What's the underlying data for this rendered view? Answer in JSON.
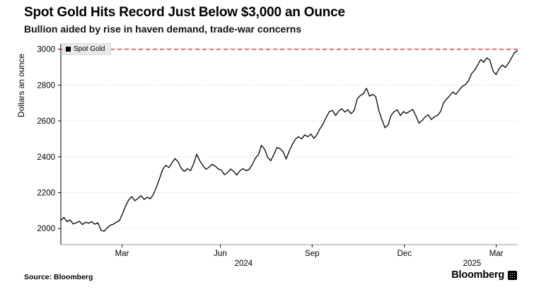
{
  "header": {
    "title": "Spot Gold Hits Record Just Below $3,000 an Ounce",
    "subtitle": "Bullion aided by rise in haven demand, trade-war concerns"
  },
  "footer": {
    "source": "Source: Bloomberg",
    "brand": "Bloomberg"
  },
  "chart_data": {
    "type": "line",
    "title": "Spot Gold Hits Record Just Below $3,000 an Ounce",
    "subtitle": "Bullion aided by rise in haven demand, trade-war concerns",
    "ylabel": "Dollars an ounce",
    "ylim": [
      1910,
      3030
    ],
    "yticks": [
      2000,
      2200,
      2400,
      2600,
      2800,
      3000
    ],
    "xticks": [
      {
        "pos": 0.134,
        "label": "Mar"
      },
      {
        "pos": 0.349,
        "label": "Jun"
      },
      {
        "pos": 0.55,
        "label": "Sep"
      },
      {
        "pos": 0.752,
        "label": "Dec"
      },
      {
        "pos": 0.953,
        "label": "Mar"
      }
    ],
    "year_labels": [
      {
        "pos": 0.4,
        "label": "2024"
      },
      {
        "pos": 0.9,
        "label": "2025"
      }
    ],
    "grid": "horizontal-dotted",
    "legend_position": "top-left-inside",
    "record_line": {
      "value": 3000,
      "color": "#e8344e",
      "style": "dashed"
    },
    "legend": {
      "label": "Spot Gold",
      "swatch_color": "#000000"
    },
    "series": [
      {
        "name": "Spot Gold",
        "color": "#000000",
        "values": [
          2045,
          2062,
          2038,
          2048,
          2025,
          2032,
          2040,
          2022,
          2035,
          2029,
          2038,
          2024,
          2032,
          1992,
          1984,
          2004,
          2018,
          2024,
          2035,
          2044,
          2083,
          2126,
          2160,
          2178,
          2155,
          2168,
          2183,
          2162,
          2174,
          2166,
          2190,
          2232,
          2280,
          2330,
          2352,
          2340,
          2366,
          2390,
          2372,
          2336,
          2318,
          2334,
          2322,
          2360,
          2414,
          2378,
          2352,
          2330,
          2342,
          2358,
          2348,
          2332,
          2326,
          2300,
          2312,
          2332,
          2318,
          2298,
          2322,
          2334,
          2322,
          2330,
          2356,
          2392,
          2412,
          2464,
          2442,
          2398,
          2378,
          2412,
          2452,
          2446,
          2428,
          2388,
          2432,
          2470,
          2498,
          2512,
          2500,
          2522,
          2512,
          2526,
          2502,
          2524,
          2558,
          2584,
          2622,
          2652,
          2658,
          2630,
          2654,
          2668,
          2650,
          2662,
          2640,
          2658,
          2722,
          2742,
          2752,
          2782,
          2738,
          2748,
          2736,
          2658,
          2608,
          2562,
          2578,
          2632,
          2652,
          2662,
          2630,
          2652,
          2642,
          2654,
          2664,
          2628,
          2588,
          2602,
          2622,
          2634,
          2608,
          2622,
          2632,
          2652,
          2702,
          2722,
          2742,
          2762,
          2748,
          2772,
          2792,
          2802,
          2822,
          2862,
          2882,
          2912,
          2942,
          2928,
          2952,
          2938,
          2878,
          2858,
          2892,
          2912,
          2898,
          2922,
          2952,
          2982,
          2992
        ]
      }
    ]
  }
}
